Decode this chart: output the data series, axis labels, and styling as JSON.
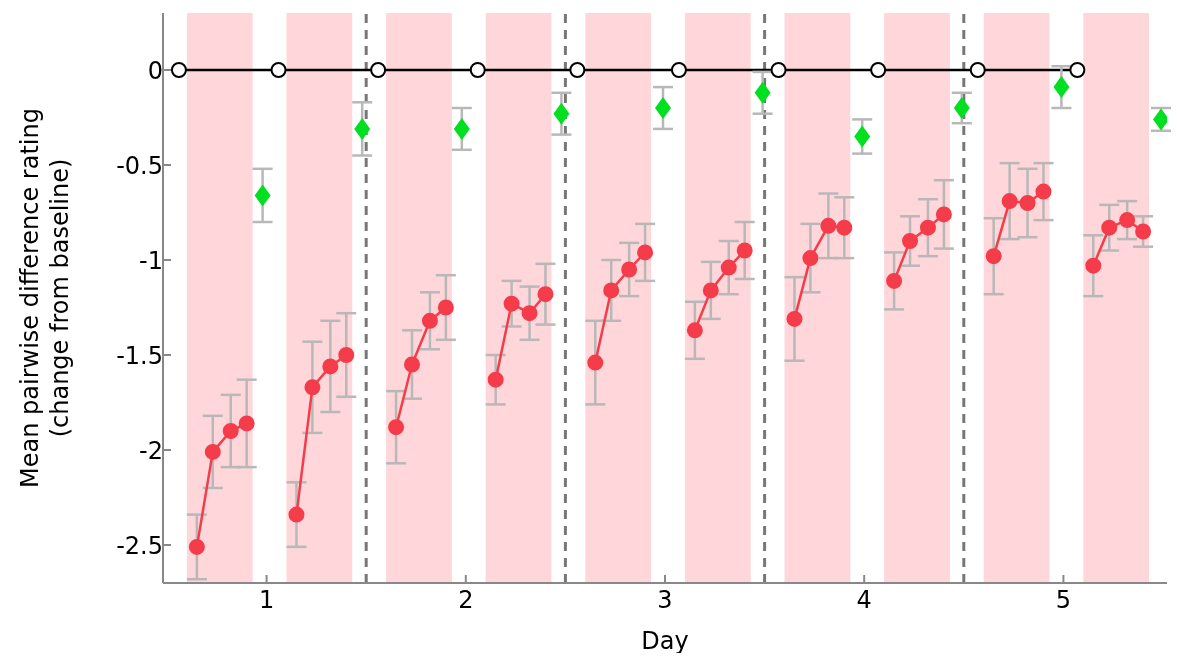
{
  "chart_data": {
    "type": "line",
    "xlabel": "Day",
    "ylabel": "Mean pairwise difference rating\n(change from baseline)",
    "xlim": [
      0.48,
      5.52
    ],
    "xticks": [
      1,
      2,
      3,
      4,
      5
    ],
    "ylim": [
      -2.7,
      0.3
    ],
    "yticks": [
      -2.5,
      -2,
      -1.5,
      -1,
      -0.5,
      0
    ],
    "series": [
      {
        "color": "#000000",
        "marker": "circle",
        "x": [
          0.56,
          1.06,
          1.56,
          2.06,
          2.56,
          3.07,
          3.57,
          4.07,
          4.57,
          5.07
        ],
        "values": [
          0,
          0,
          0,
          0,
          0,
          0,
          0,
          0,
          0,
          0
        ]
      },
      {
        "type": "scatter",
        "color": "#00e020",
        "marker": "diamond",
        "x": [
          0.98,
          1.48,
          1.98,
          2.48,
          2.99,
          3.49,
          3.99,
          4.49,
          4.99,
          5.49
        ],
        "values": [
          -0.66,
          -0.31,
          -0.31,
          -0.23,
          -0.2,
          -0.12,
          -0.35,
          -0.2,
          -0.09,
          -0.26
        ],
        "errors": [
          0.14,
          0.14,
          0.11,
          0.11,
          0.11,
          0.11,
          0.09,
          0.08,
          0.11,
          0.06
        ]
      },
      {
        "color": "#f43c4a",
        "marker": "circle",
        "x": [
          0.65,
          0.73,
          0.82,
          0.9,
          1.0,
          1.15,
          1.23,
          1.32,
          1.4,
          1.5,
          1.65,
          1.73,
          1.82,
          1.9,
          2.0,
          2.15,
          2.23,
          2.32,
          2.4,
          2.5,
          2.65,
          2.73,
          2.82,
          2.9,
          3.0,
          3.15,
          3.23,
          3.32,
          3.4,
          3.5,
          3.65,
          3.73,
          3.82,
          3.9,
          4.0,
          4.15,
          4.23,
          4.32,
          4.4,
          4.5,
          4.65,
          4.73,
          4.82,
          4.9,
          5.0,
          5.15,
          5.23,
          5.32,
          5.4
        ],
        "values": [
          -2.51,
          -2.01,
          -1.9,
          -1.86,
          null,
          -2.34,
          -1.67,
          -1.56,
          -1.5,
          null,
          -1.88,
          -1.55,
          -1.32,
          -1.25,
          null,
          -1.63,
          -1.23,
          -1.28,
          -1.18,
          null,
          -1.54,
          -1.16,
          -1.05,
          -0.96,
          null,
          -1.37,
          -1.16,
          -1.04,
          -0.95,
          null,
          -1.31,
          -0.99,
          -0.82,
          -0.83,
          null,
          -1.11,
          -0.9,
          -0.83,
          -0.76,
          null,
          -0.98,
          -0.69,
          -0.7,
          -0.64,
          null,
          -1.03,
          -0.83,
          -0.79,
          -0.85
        ],
        "errors": [
          0.17,
          0.19,
          0.19,
          0.23,
          null,
          0.17,
          0.24,
          0.24,
          0.22,
          null,
          0.19,
          0.18,
          0.15,
          0.17,
          null,
          0.13,
          0.12,
          0.14,
          0.16,
          null,
          0.22,
          0.16,
          0.14,
          0.15,
          null,
          0.15,
          0.15,
          0.14,
          0.15,
          null,
          0.22,
          0.18,
          0.17,
          0.16,
          null,
          0.15,
          0.13,
          0.15,
          0.18,
          null,
          0.2,
          0.2,
          0.18,
          0.15,
          null,
          0.16,
          0.12,
          0.1,
          0.08
        ]
      }
    ],
    "bands": [
      {
        "axis": "x",
        "from": 0.6,
        "to": 0.93,
        "color": "#ffd6d9"
      },
      {
        "axis": "x",
        "from": 1.1,
        "to": 1.43,
        "color": "#ffd6d9"
      },
      {
        "axis": "x",
        "from": 1.6,
        "to": 1.93,
        "color": "#ffd6d9"
      },
      {
        "axis": "x",
        "from": 2.1,
        "to": 2.43,
        "color": "#ffd6d9"
      },
      {
        "axis": "x",
        "from": 2.6,
        "to": 2.93,
        "color": "#ffd6d9"
      },
      {
        "axis": "x",
        "from": 3.1,
        "to": 3.43,
        "color": "#ffd6d9"
      },
      {
        "axis": "x",
        "from": 3.6,
        "to": 3.93,
        "color": "#ffd6d9"
      },
      {
        "axis": "x",
        "from": 4.1,
        "to": 4.43,
        "color": "#ffd6d9"
      },
      {
        "axis": "x",
        "from": 4.6,
        "to": 4.93,
        "color": "#ffd6d9"
      },
      {
        "axis": "x",
        "from": 5.1,
        "to": 5.43,
        "color": "#ffd6d9"
      }
    ],
    "ref_lines": [
      {
        "axis": "x",
        "value": 1.5,
        "color": "#777777",
        "line_style": "dashed"
      },
      {
        "axis": "x",
        "value": 2.5,
        "color": "#777777",
        "line_style": "dashed"
      },
      {
        "axis": "x",
        "value": 3.5,
        "color": "#777777",
        "line_style": "dashed"
      },
      {
        "axis": "x",
        "value": 4.5,
        "color": "#777777",
        "line_style": "dashed"
      }
    ]
  }
}
